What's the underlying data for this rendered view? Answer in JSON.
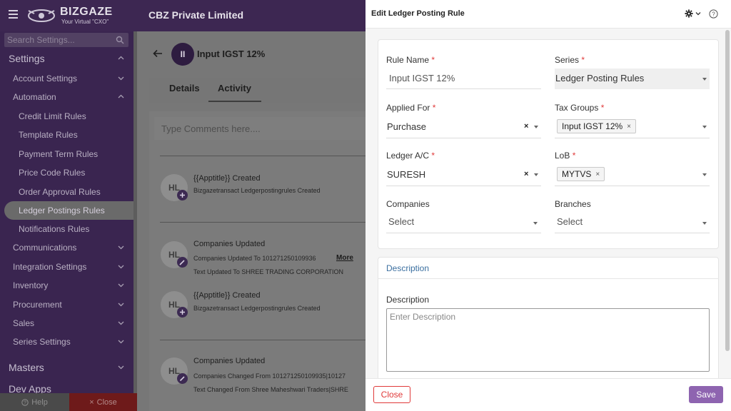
{
  "app": {
    "logo_text": "BIZGAZE",
    "logo_tagline": "Your Virtual \"CXO\"",
    "company": "CBZ Private Limited"
  },
  "sidebar": {
    "search_placeholder": "Search Settings...",
    "settings_label": "Settings",
    "items": [
      {
        "label": "Account Settings"
      },
      {
        "label": "Automation"
      },
      {
        "label": "Credit Limit Rules"
      },
      {
        "label": "Template Rules"
      },
      {
        "label": "Payment Term Rules"
      },
      {
        "label": "Price Code Rules"
      },
      {
        "label": "Order Approval Rules"
      },
      {
        "label": "Ledger Postings Rules"
      },
      {
        "label": "Notifications Rules"
      },
      {
        "label": "Communications"
      },
      {
        "label": "Integration Settings"
      },
      {
        "label": "Inventory"
      },
      {
        "label": "Procurement"
      },
      {
        "label": "Sales"
      },
      {
        "label": "Series Settings"
      }
    ],
    "masters_label": "Masters",
    "dev_apps_label": "Dev Apps",
    "help_label": "Help",
    "close_label": "Close"
  },
  "record": {
    "avatar_text": "II",
    "title": "Input IGST 12%",
    "tabs": [
      "Details",
      "Activity"
    ],
    "comment_placeholder": "Type Comments here....",
    "activities": [
      {
        "avatar": "HL",
        "title": "{{Apptitle}} Created",
        "lines": [
          "Bizgazetransact Ledgerpostingrules Created"
        ]
      },
      {
        "avatar": "HL",
        "title": "Companies Updated",
        "lines": [
          "Companies Updated To 101271250109936",
          "Text Updated To SHREE TRADING CORPORATION"
        ],
        "more": "More"
      },
      {
        "avatar": "HL",
        "title": "{{Apptitle}} Created",
        "lines": [
          "Bizgazetransact Ledgerpostingrules Created"
        ]
      },
      {
        "avatar": "HL",
        "title": "Companies Updated",
        "lines": [
          "Companies Changed From 101271250109935|10127",
          "Text Changed From Shree Maheshwari Traders|SHRE"
        ]
      }
    ]
  },
  "panel": {
    "title": "Edit Ledger Posting Rule",
    "fields": {
      "rule_name": {
        "label": "Rule Name",
        "value": "Input IGST 12%"
      },
      "series": {
        "label": "Series",
        "value": "Ledger Posting Rules"
      },
      "applied_for": {
        "label": "Applied For",
        "value": "Purchase"
      },
      "tax_groups": {
        "label": "Tax Groups",
        "chip": "Input IGST 12%"
      },
      "ledger_ac": {
        "label": "Ledger A/C",
        "value": "SURESH"
      },
      "lob": {
        "label": "LoB",
        "chip": "MYTVS"
      },
      "companies": {
        "label": "Companies",
        "placeholder": "Select"
      },
      "branches": {
        "label": "Branches",
        "placeholder": "Select"
      }
    },
    "required_mark": "*",
    "clear_mark": "×",
    "description_section": "Description",
    "description_label": "Description",
    "description_placeholder": "Enter Description",
    "close_button": "Close",
    "save_button": "Save"
  },
  "colors": {
    "brand_dark": "#3d2752",
    "accent": "#8e64b0",
    "danger": "#e03a3a",
    "link": "#3b6fa0"
  }
}
